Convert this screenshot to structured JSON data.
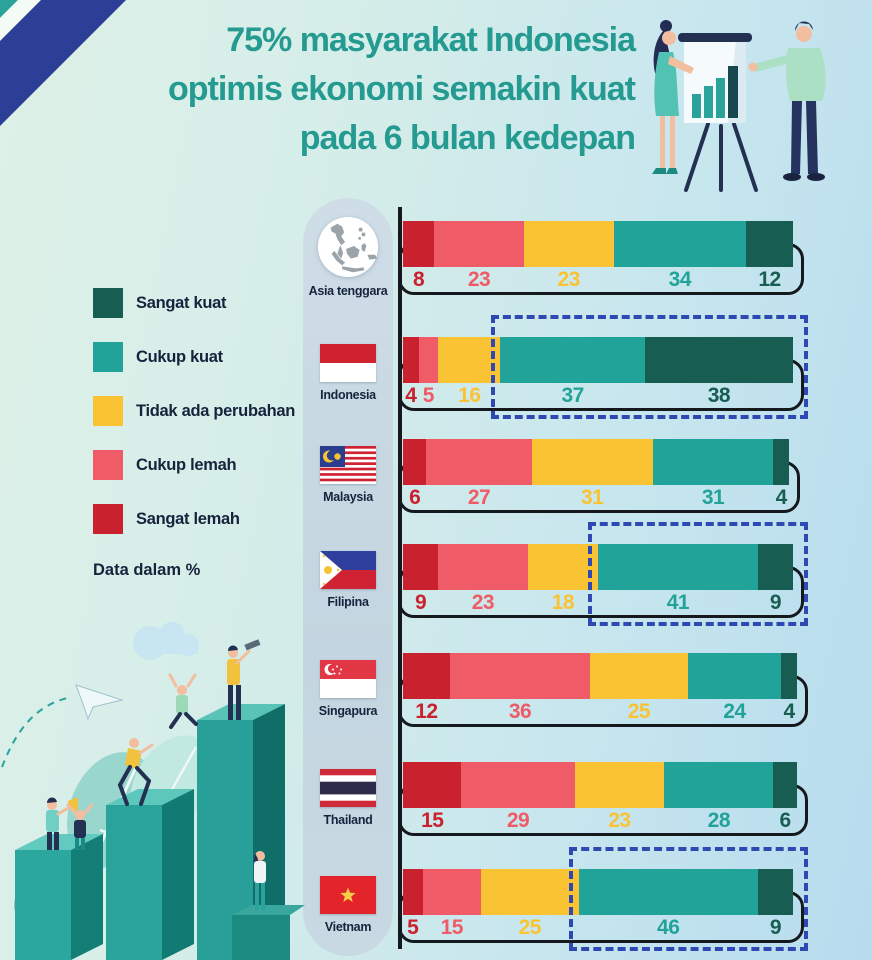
{
  "title": {
    "lines": [
      "75% masyarakat Indonesia",
      "optimis ekonomi semakin kuat",
      "pada 6 bulan kedepan"
    ],
    "color": "#249a90"
  },
  "legend": {
    "position": "left",
    "items": [
      {
        "label": "Sangat kuat",
        "color": "#175d52"
      },
      {
        "label": "Cukup kuat",
        "color": "#22a39a"
      },
      {
        "label": "Tidak ada perubahan",
        "color": "#f9c333"
      },
      {
        "label": "Cukup lemah",
        "color": "#ef5b66"
      },
      {
        "label": "Sangat lemah",
        "color": "#c9222e"
      }
    ],
    "note": "Data dalam %"
  },
  "chart_data": {
    "type": "bar",
    "stacked": true,
    "orientation": "horizontal",
    "unit": "%",
    "xlim": [
      0,
      100
    ],
    "grid": false,
    "value_labels": "below each segment, colored to match segment",
    "categories": [
      "Asia tenggara",
      "Indonesia",
      "Malaysia",
      "Filipina",
      "Singapura",
      "Thailand",
      "Vietnam"
    ],
    "series": [
      {
        "name": "Sangat lemah",
        "color": "#c9222e",
        "values": [
          8,
          4,
          6,
          9,
          12,
          15,
          5
        ]
      },
      {
        "name": "Cukup lemah",
        "color": "#ef5b66",
        "values": [
          23,
          5,
          27,
          23,
          36,
          29,
          15
        ]
      },
      {
        "name": "Tidak ada perubahan",
        "color": "#f9c333",
        "values": [
          23,
          16,
          31,
          18,
          25,
          23,
          25
        ]
      },
      {
        "name": "Cukup kuat",
        "color": "#22a39a",
        "values": [
          34,
          37,
          31,
          41,
          24,
          28,
          46
        ]
      },
      {
        "name": "Sangat kuat",
        "color": "#175d52",
        "values": [
          12,
          38,
          4,
          9,
          4,
          6,
          9
        ]
      }
    ],
    "highlighted_categories": [
      "Indonesia",
      "Filipina",
      "Vietnam"
    ],
    "highlight_series": [
      "Cukup kuat",
      "Sangat kuat"
    ],
    "highlight_color": "#2e49b2"
  },
  "decorations": {
    "top_right": "presenter-with-flipchart-illustration",
    "bottom_left": "people-climbing-bar-pillars-illustration",
    "top_left": "diagonal-corner-stripes"
  }
}
